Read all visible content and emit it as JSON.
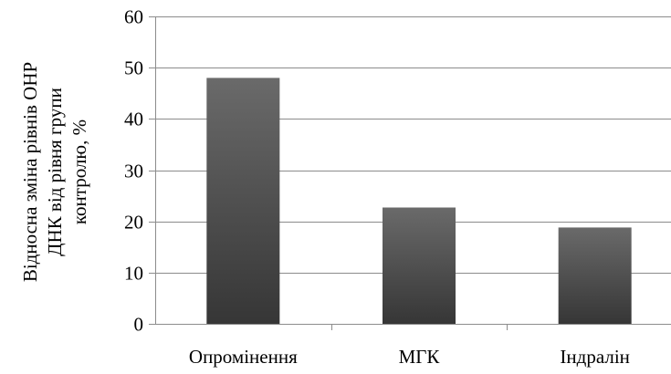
{
  "chart_data": {
    "type": "bar",
    "categories": [
      "Опромінення",
      "МГК",
      "Індралін"
    ],
    "values": [
      48,
      22.7,
      18.8
    ],
    "ylabel": [
      "Відносна зміна рівнів ОНР",
      "ДНК від  рівня групи",
      "контролю, %"
    ],
    "xlabel": "",
    "ylim": [
      0,
      60
    ],
    "yticks": [
      0,
      10,
      20,
      30,
      40,
      50,
      60
    ],
    "grid": true,
    "legend": "none",
    "bar_color_top": "#6a6a6a",
    "bar_color_bottom": "#363636"
  }
}
